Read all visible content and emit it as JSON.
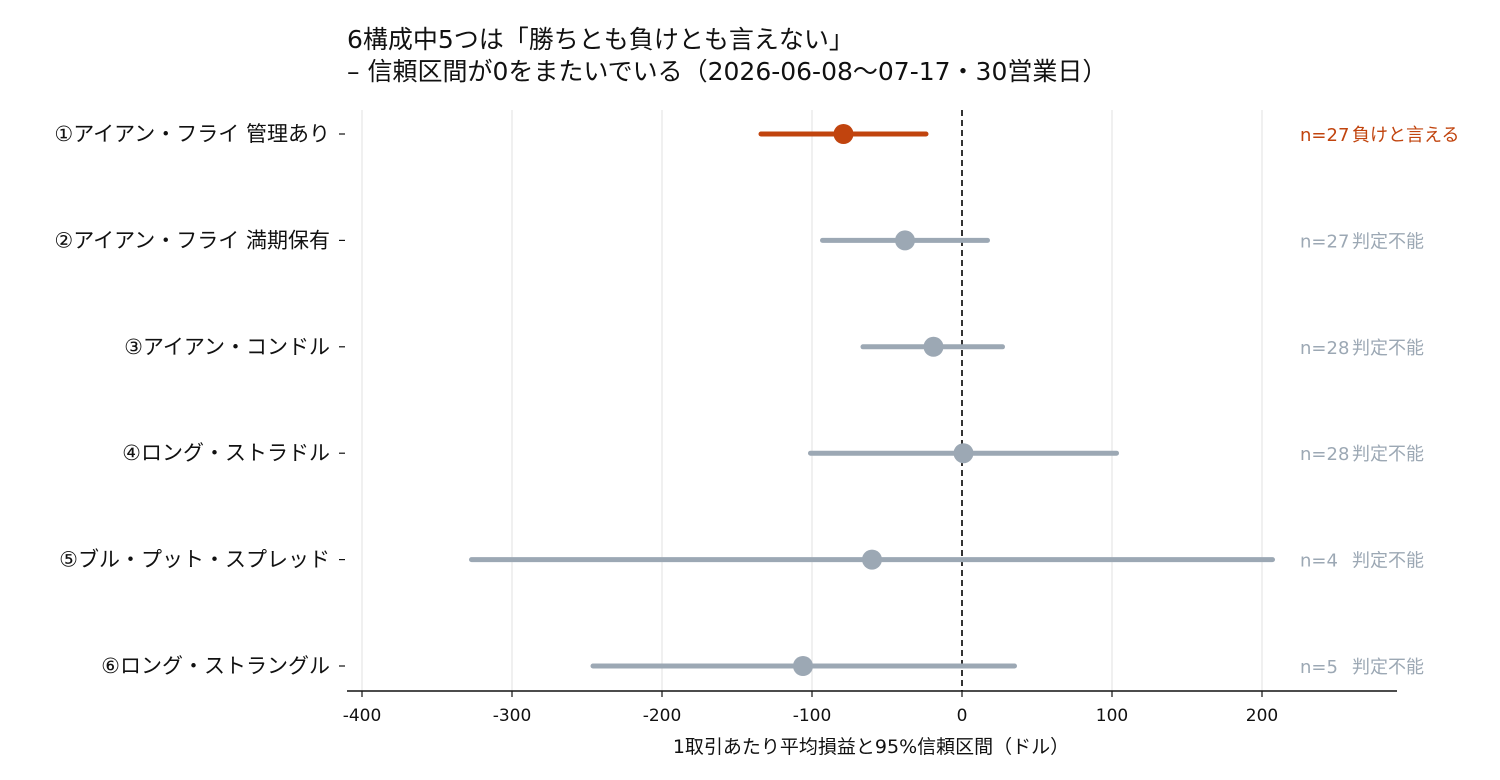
{
  "chart_data": {
    "type": "forest",
    "title": [
      "6構成中5つは「勝ちとも負けとも言えない」",
      "– 信頼区間が0をまたいでいる（2026-06-08～07-17・30営業日）"
    ],
    "xlabel": "1取引あたり平均損益と95%信頼区間（ドル）",
    "xlim": [
      -410,
      290
    ],
    "xticks": [
      -400,
      -300,
      -200,
      -100,
      0,
      100,
      200
    ],
    "grid": "vertical",
    "reference_line": 0,
    "colors": {
      "significant": "#c1440e",
      "inconclusive": "#9ca8b4",
      "reference": "#333333"
    },
    "rows": [
      {
        "label": "①アイアン・フライ 管理あり",
        "mean": -79,
        "low": -134,
        "high": -24,
        "n_label": "n=27",
        "verdict": "負けと言える",
        "status": "significant"
      },
      {
        "label": "②アイアン・フライ 満期保有",
        "mean": -38,
        "low": -93,
        "high": 17,
        "n_label": "n=27",
        "verdict": "判定不能",
        "status": "inconclusive"
      },
      {
        "label": "③アイアン・コンドル",
        "mean": -19,
        "low": -66,
        "high": 27,
        "n_label": "n=28",
        "verdict": "判定不能",
        "status": "inconclusive"
      },
      {
        "label": "④ロング・ストラドル",
        "mean": 1,
        "low": -101,
        "high": 103,
        "n_label": "n=28",
        "verdict": "判定不能",
        "status": "inconclusive"
      },
      {
        "label": "⑤ブル・プット・スプレッド",
        "mean": -60,
        "low": -327,
        "high": 207,
        "n_label": "n=4",
        "verdict": "判定不能",
        "status": "inconclusive"
      },
      {
        "label": "⑥ロング・ストラングル",
        "mean": -106,
        "low": -246,
        "high": 35,
        "n_label": "n=5",
        "verdict": "判定不能",
        "status": "inconclusive"
      }
    ]
  }
}
